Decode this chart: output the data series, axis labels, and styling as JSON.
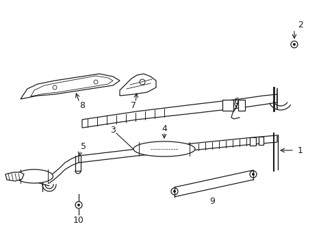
{
  "bg_color": "#ffffff",
  "line_color": "#000000",
  "figsize": [
    4.89,
    3.6
  ],
  "dpi": 100,
  "xlim": [
    0,
    489
  ],
  "ylim": [
    0,
    360
  ]
}
